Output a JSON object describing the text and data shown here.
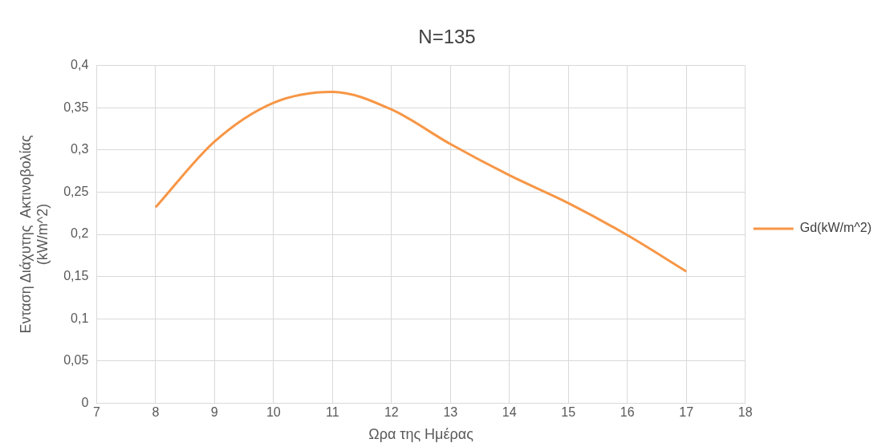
{
  "chart_data": {
    "type": "line",
    "title": "N=135",
    "xlabel": "Ωρα της Ημέρας",
    "ylabel": "Ενταση Διάχυτης  Ακτινοβολίας\n(kW/m^2)",
    "x": [
      8,
      9,
      10,
      11,
      12,
      13,
      14,
      15,
      16,
      17
    ],
    "series": [
      {
        "name": "Gd(kW/m^2)",
        "color": "#f79646",
        "values": [
          0.232,
          0.31,
          0.356,
          0.369,
          0.348,
          0.307,
          0.27,
          0.237,
          0.199,
          0.156
        ]
      }
    ],
    "xlim": [
      7,
      18
    ],
    "xticks": [
      7,
      8,
      9,
      10,
      11,
      12,
      13,
      14,
      15,
      16,
      17,
      18
    ],
    "ylim": [
      0,
      0.4
    ],
    "yticks": [
      0,
      {
        "value": 0.05,
        "label": "0,05"
      },
      {
        "value": 0.1,
        "label": "0,1"
      },
      {
        "value": 0.15,
        "label": "0,15"
      },
      {
        "value": 0.2,
        "label": "0,2"
      },
      {
        "value": 0.25,
        "label": "0,25"
      },
      {
        "value": 0.3,
        "label": "0,3"
      },
      {
        "value": 0.35,
        "label": "0,35"
      },
      {
        "value": 0.4,
        "label": "0,4"
      }
    ],
    "grid": true,
    "legend": "right",
    "marker": "none",
    "line_style": "solid"
  }
}
